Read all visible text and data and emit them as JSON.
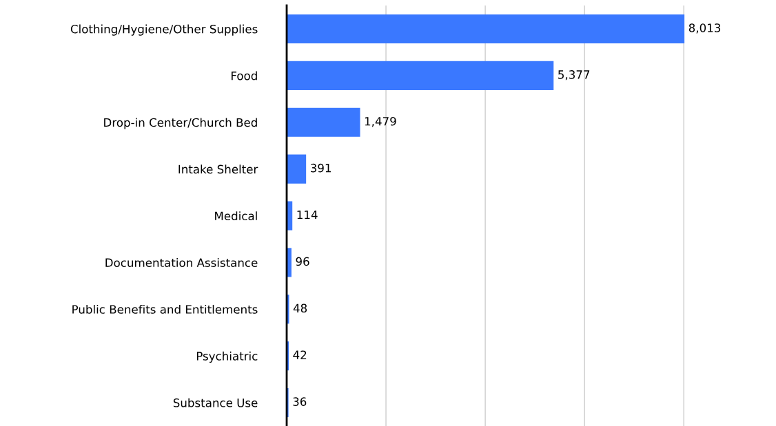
{
  "chart_data": {
    "type": "bar",
    "orientation": "horizontal",
    "categories": [
      "Clothing/Hygiene/Other Supplies",
      "Food",
      "Drop-in Center/Church Bed",
      "Intake Shelter",
      "Medical",
      "Documentation Assistance",
      "Public Benefits and Entitlements",
      "Psychiatric",
      "Substance Use"
    ],
    "values": [
      8013,
      5377,
      1479,
      391,
      114,
      96,
      48,
      42,
      36
    ],
    "value_labels": [
      "8,013",
      "5,377",
      "1,479",
      "391",
      "114",
      "96",
      "48",
      "42",
      "36"
    ],
    "color": "#3a78ff",
    "xticks": [
      {
        "value": 2000,
        "label": null
      },
      {
        "value": 4000,
        "label": null
      },
      {
        "value": 6000,
        "label": null
      },
      {
        "value": 8000,
        "label": null
      }
    ],
    "tick_labels": "y",
    "grid": "x",
    "legend": false
  }
}
